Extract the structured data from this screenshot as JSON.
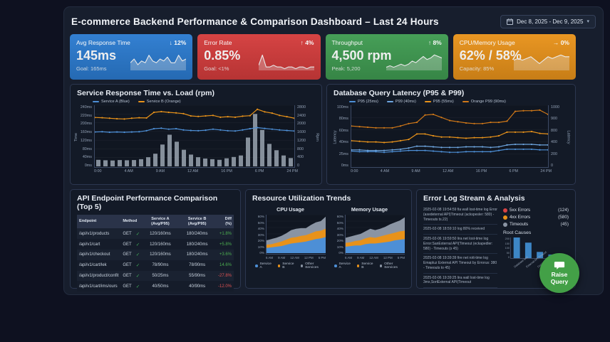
{
  "page": {
    "title": "E-commerce Backend Performance & Comparison Dashboard – Last 24 Hours",
    "date_range": "Dec 8, 2025 - Dec 9, 2025"
  },
  "kpis": [
    {
      "label": "Avg Response Time",
      "delta": "↓ 12%",
      "value": "145ms",
      "goal": "Goal: 165ms",
      "color": "#2b7bd0",
      "spark": [
        4,
        6,
        3,
        5,
        4,
        8,
        5,
        4,
        6,
        5,
        7,
        4,
        4,
        8,
        5,
        6
      ]
    },
    {
      "label": "Error Rate",
      "delta": "↑ 4%",
      "value": "0.85%",
      "goal": "Goal: <1%",
      "color": "#d43c3c",
      "spark": [
        3,
        9,
        2,
        2,
        3,
        2,
        2,
        1,
        2,
        2,
        1,
        2,
        2,
        1,
        2,
        2
      ]
    },
    {
      "label": "Throughput",
      "delta": "↑ 8%",
      "value": "4,500 rpm",
      "goal": "Peak: 5,200",
      "color": "#3f9b51",
      "spark": [
        2,
        3,
        2,
        3,
        4,
        3,
        4,
        6,
        5,
        7,
        9,
        7,
        8,
        10,
        9,
        8
      ]
    },
    {
      "label": "CPU/Memory Usage",
      "delta": "→ 0%",
      "value": "62% / 58%",
      "goal": "Capacity: 85%",
      "color": "#e8921a",
      "spark": [
        6,
        7,
        6,
        7,
        8,
        6,
        4,
        6,
        8,
        7,
        8,
        9,
        8,
        8
      ]
    }
  ],
  "resource_title": "Resource Utilization Trends",
  "api_table": {
    "title": "API Endpoint Performance Comparison (Top 5)",
    "columns": [
      "Endpoint",
      "Method",
      "Service A (Avg/P95)",
      "Service B (Avg/P95)",
      "Diff (%)"
    ],
    "rows": [
      {
        "endpoint": "/api/v1/products",
        "method": "GET",
        "check": "✓",
        "a": "120/160ms",
        "b": "180/240ms",
        "diff": "+1.8%",
        "diff_color": "#4caf50"
      },
      {
        "endpoint": "/api/v1/cart",
        "method": "GET",
        "check": "✓",
        "a": "120/160ms",
        "b": "180/240ms",
        "diff": "+5.8%",
        "diff_color": "#4caf50"
      },
      {
        "endpoint": "/api/v1/checkout",
        "method": "GET",
        "check": "✓",
        "a": "120/160ms",
        "b": "180/240ms",
        "diff": "+3.6%",
        "diff_color": "#4caf50"
      },
      {
        "endpoint": "/api/v1/cart/lek",
        "method": "GET",
        "check": "✓",
        "a": "78/90ms",
        "b": "78/90ms",
        "diff": "14.6%",
        "diff_color": "#4caf50"
      },
      {
        "endpoint": "/api/v1/product/confit",
        "method": "GET",
        "check": "✓",
        "a": "50/25ms",
        "b": "55/90ms",
        "diff": "-27.8%",
        "diff_color": "#e05252"
      },
      {
        "endpoint": "/api/v1/cart/ims/ours",
        "method": "GET",
        "check": "✓",
        "a": "40/50ms",
        "b": "40/90ms",
        "diff": "-12.0%",
        "diff_color": "#e05252"
      }
    ]
  },
  "errors": {
    "title": "Error Log Stream & Analysis",
    "root_causes_title": "Root Causes",
    "logs": [
      "2025-02-08 19:54:59 fia wall lost-time log Error (axedeternal API)Timeout (ackspesler: 580) - Timeouts ts.22)",
      "2025-02-08 18:59:10 log 80% received",
      "2025-02-06 19:59:50 lira net lost-time log Error:SanExternal API(Timeout (eckapedler: 580) - Timeouts (s 45)",
      "2025-02-08 19:39:39 fire net rott-time log Emapluz External API Timeout by Errorus: 380 - Timeouts to 45)",
      "2025-02-06 19:39:25 lira wall lost-time log 3mx,SortExternal API(Timeout"
    ],
    "legend": [
      {
        "label": "5xx Errors",
        "count": "(124)",
        "color": "#d84343"
      },
      {
        "label": "4xx Errors",
        "count": "(580)",
        "color": "#e8921a"
      },
      {
        "label": "Timeouts",
        "count": "(45)",
        "color": "#8a94a3"
      }
    ]
  },
  "raise_query": {
    "line1": "Raise",
    "line2": "Query",
    "color": "#43a047"
  },
  "chart_data": [
    {
      "id": "service_response_vs_load",
      "type": "composite",
      "title": "Service Response Time vs. Load (rpm)",
      "left_axis": {
        "label": "Time",
        "max": 240,
        "ticks": [
          "240ms",
          "220ms",
          "200ms",
          "160ms",
          "120ms",
          "80ms",
          "40ms",
          "0ms"
        ]
      },
      "right_axis": {
        "label": "Rpm",
        "max": 2800,
        "ticks": [
          "2800",
          "2400",
          "2000",
          "1600",
          "1200",
          "800",
          "400",
          "0"
        ]
      },
      "x_ticks": [
        "0:00",
        "4 AM",
        "9 AM",
        "12 AM",
        "16 PM",
        "6 PM",
        "24 PM"
      ],
      "bars": {
        "name": "Load (rpm)",
        "color": "#9aa4b0",
        "values": [
          300,
          280,
          270,
          290,
          280,
          290,
          330,
          420,
          580,
          1000,
          1450,
          1130,
          760,
          540,
          420,
          360,
          330,
          300,
          370,
          430,
          500,
          1320,
          2400,
          1670,
          1030,
          740,
          500,
          380
        ]
      },
      "series": [
        {
          "name": "Service A (Blue)",
          "color": "#4d8fd6",
          "values": [
            135,
            136,
            134,
            135,
            134,
            135,
            136,
            140,
            148,
            150,
            146,
            148,
            143,
            141,
            140,
            142,
            146,
            143,
            140,
            139,
            143,
            148,
            152,
            149,
            146,
            143,
            141,
            139
          ]
        },
        {
          "name": "Service B (Orange)",
          "color": "#e8921a",
          "values": [
            192,
            191,
            189,
            187,
            186,
            189,
            191,
            190,
            212,
            215,
            212,
            210,
            207,
            198,
            196,
            198,
            200,
            193,
            195,
            193,
            197,
            199,
            224,
            214,
            209,
            200,
            195,
            189
          ]
        }
      ],
      "grid": true
    },
    {
      "id": "db_query_latency",
      "type": "lines",
      "title": "Database Query Latency (P95 & P99)",
      "left_axis": {
        "label": "Latency",
        "max": 100,
        "ticks": [
          "100ms",
          "80ms",
          "60ms",
          "40ms",
          "25ms",
          "0ms"
        ]
      },
      "right_axis": {
        "label": "Latency",
        "ticks": [
          "1000",
          "900",
          "800",
          "400",
          "200",
          "0"
        ]
      },
      "x_ticks": [
        "0:00",
        "4 AM",
        "9 AM",
        "12 AM",
        "16 PM",
        "6 PM",
        "24 PM"
      ],
      "series": [
        {
          "name": "P95 (25ms)",
          "color": "#4d8fd6",
          "values": [
            25,
            24,
            24,
            24,
            23,
            24,
            25,
            26,
            26,
            26,
            25,
            24,
            23,
            23,
            24,
            24,
            24,
            24,
            26,
            28,
            28,
            28,
            28,
            27,
            27
          ]
        },
        {
          "name": "P99 (40ms)",
          "color": "#6ea6e0",
          "values": [
            27,
            27,
            26,
            26,
            26,
            27,
            28,
            30,
            33,
            33,
            32,
            31,
            31,
            31,
            32,
            32,
            32,
            31,
            32,
            35,
            36,
            36,
            36,
            35,
            35
          ]
        },
        {
          "name": "P95 (55ms)",
          "color": "#e8921a",
          "values": [
            42,
            41,
            40,
            40,
            39,
            40,
            42,
            44,
            53,
            53,
            50,
            48,
            48,
            47,
            46,
            47,
            47,
            48,
            50,
            56,
            56,
            56,
            57,
            54,
            53
          ]
        },
        {
          "name": "Orange P99 (90ms)",
          "color": "#d07818",
          "values": [
            66,
            65,
            64,
            63,
            63,
            63,
            66,
            70,
            72,
            84,
            85,
            80,
            75,
            73,
            71,
            70,
            70,
            72,
            72,
            74,
            90,
            91,
            91,
            92,
            85
          ]
        }
      ],
      "grid": true
    },
    {
      "id": "cpu_usage",
      "type": "stacked_area",
      "title": "CPU Usage",
      "y_max": 60,
      "y_ticks": [
        "60%",
        "50%",
        "40%",
        "30%",
        "20%",
        "10%",
        "0%"
      ],
      "x_ticks": [
        "6 AM",
        "9 AM",
        "12 AM",
        "12 PM",
        "6 PM"
      ],
      "series": [
        {
          "name": "Service A",
          "color": "#4d8fd6",
          "values": [
            8,
            9,
            10,
            11,
            13,
            15,
            16,
            17,
            18,
            20,
            22,
            23,
            25
          ]
        },
        {
          "name": "Service B",
          "color": "#e8921a",
          "values": [
            5,
            5,
            6,
            7,
            8,
            9,
            9,
            10,
            10,
            11,
            12,
            12,
            13
          ]
        },
        {
          "name": "Other Services",
          "color": "#8a94a3",
          "values": [
            7,
            8,
            8,
            9,
            10,
            12,
            13,
            12,
            11,
            13,
            14,
            15,
            19
          ]
        }
      ]
    },
    {
      "id": "memory_usage",
      "type": "stacked_area",
      "title": "Memory Usage",
      "y_max": 60,
      "y_ticks": [
        "60%",
        "50%",
        "40%",
        "30%",
        "20%",
        "10%",
        "0%"
      ],
      "x_ticks": [
        "6 AM",
        "9 AM",
        "12 AM",
        "12 PM",
        "6 PM"
      ],
      "series": [
        {
          "name": "Service A",
          "color": "#4d8fd6",
          "values": [
            10,
            11,
            12,
            12,
            14,
            15,
            15,
            16,
            17,
            18,
            20,
            21,
            22
          ]
        },
        {
          "name": "Service B",
          "color": "#e8921a",
          "values": [
            6,
            6,
            7,
            8,
            9,
            10,
            9,
            10,
            11,
            12,
            12,
            13,
            13
          ]
        },
        {
          "name": "Other Services",
          "color": "#8a94a3",
          "values": [
            8,
            9,
            9,
            10,
            11,
            13,
            12,
            12,
            13,
            15,
            16,
            17,
            21
          ]
        }
      ]
    },
    {
      "id": "root_causes",
      "type": "bar",
      "title": "Root Causes",
      "y_max": 200,
      "y_ticks": [
        "200",
        "150",
        "100",
        "50",
        "0"
      ],
      "categories": [
        "Database lock",
        "External API Timeout",
        "Database lock",
        "Similar DB"
      ],
      "values": [
        200,
        150,
        60,
        35
      ],
      "color": "#3d86c6"
    }
  ]
}
